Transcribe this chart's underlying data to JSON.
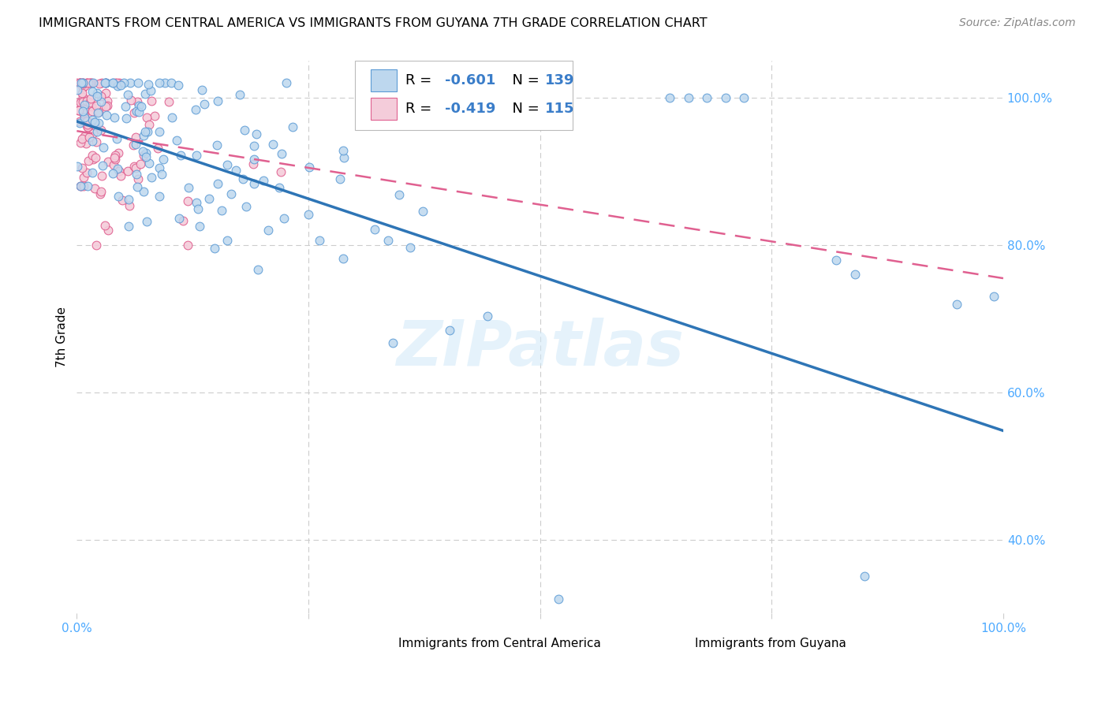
{
  "title": "IMMIGRANTS FROM CENTRAL AMERICA VS IMMIGRANTS FROM GUYANA 7TH GRADE CORRELATION CHART",
  "source": "Source: ZipAtlas.com",
  "ylabel": "7th Grade",
  "legend_blue_R": "-0.601",
  "legend_blue_N": "139",
  "legend_pink_R": "-0.419",
  "legend_pink_N": "115",
  "watermark": "ZIPatlas",
  "blue_fill": "#BDD7EE",
  "blue_edge": "#5B9BD5",
  "pink_fill": "#F4CCDA",
  "pink_edge": "#E06090",
  "blue_line_color": "#2E75B6",
  "pink_line_color": "#E06090",
  "background_color": "#FFFFFF",
  "grid_color": "#CCCCCC",
  "tick_color": "#4DAAFF",
  "ylim_min": 0.3,
  "ylim_max": 1.05,
  "xlim_min": 0.0,
  "xlim_max": 1.0
}
